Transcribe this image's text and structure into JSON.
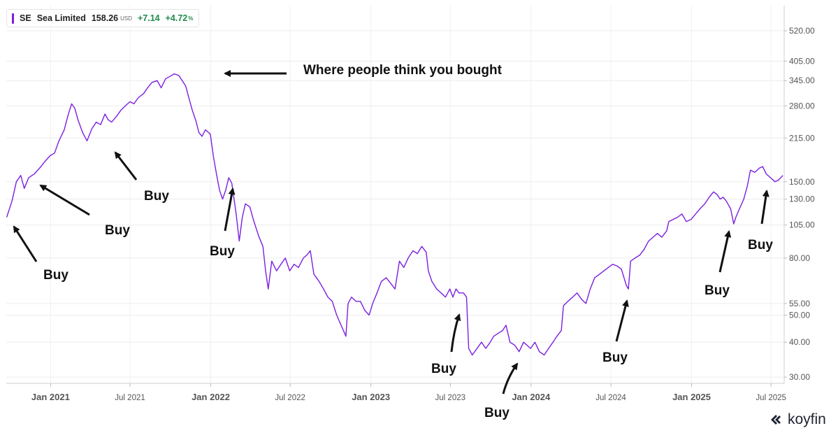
{
  "legend": {
    "symbol": "SE",
    "name": "Sea Limited",
    "price": "158.26",
    "currency": "USD",
    "change": "+7.14",
    "change_pct": "+4.72",
    "pct_sign": "%",
    "line_color": "#7b1fe0"
  },
  "brand": {
    "name": "koyfin"
  },
  "chart_data": {
    "type": "line",
    "title": "",
    "xlabel": "",
    "ylabel": "",
    "y_scale": "log",
    "ylim": [
      28.5,
      640
    ],
    "x_range": [
      "2020-09-22",
      "2025-07-31"
    ],
    "grid": true,
    "y_ticks": [
      "520.00",
      "405.00",
      "345.00",
      "280.00",
      "215.00",
      "150.00",
      "130.00",
      "105.00",
      "80.00",
      "55.00",
      "50.00",
      "40.00",
      "30.00"
    ],
    "x_ticks": [
      {
        "label": "Jan 2021",
        "date": "2021-01-01",
        "major": true
      },
      {
        "label": "Jul 2021",
        "date": "2021-07-01",
        "major": false
      },
      {
        "label": "Jan 2022",
        "date": "2022-01-01",
        "major": true
      },
      {
        "label": "Jul 2022",
        "date": "2022-07-01",
        "major": false
      },
      {
        "label": "Jan 2023",
        "date": "2023-01-01",
        "major": true
      },
      {
        "label": "Jul 2023",
        "date": "2023-07-01",
        "major": false
      },
      {
        "label": "Jan 2024",
        "date": "2024-01-01",
        "major": true
      },
      {
        "label": "Jul 2024",
        "date": "2024-07-01",
        "major": false
      },
      {
        "label": "Jan 2025",
        "date": "2025-01-01",
        "major": true
      },
      {
        "label": "Jul 2025",
        "date": "2025-07-01",
        "major": false
      }
    ],
    "series": [
      {
        "name": "SE",
        "color": "#7b1fe0",
        "points": [
          [
            "2020-09-23",
            112
          ],
          [
            "2020-10-05",
            128
          ],
          [
            "2020-10-15",
            150
          ],
          [
            "2020-10-25",
            158
          ],
          [
            "2020-11-02",
            142
          ],
          [
            "2020-11-12",
            155
          ],
          [
            "2020-11-25",
            160
          ],
          [
            "2020-12-10",
            170
          ],
          [
            "2020-12-20",
            178
          ],
          [
            "2020-12-31",
            186
          ],
          [
            "2021-01-10",
            190
          ],
          [
            "2021-01-20",
            210
          ],
          [
            "2021-02-01",
            230
          ],
          [
            "2021-02-10",
            260
          ],
          [
            "2021-02-18",
            285
          ],
          [
            "2021-02-25",
            275
          ],
          [
            "2021-03-05",
            248
          ],
          [
            "2021-03-15",
            225
          ],
          [
            "2021-03-25",
            210
          ],
          [
            "2021-04-05",
            232
          ],
          [
            "2021-04-15",
            245
          ],
          [
            "2021-04-25",
            240
          ],
          [
            "2021-05-05",
            262
          ],
          [
            "2021-05-12",
            250
          ],
          [
            "2021-05-20",
            245
          ],
          [
            "2021-06-01",
            258
          ],
          [
            "2021-06-10",
            270
          ],
          [
            "2021-06-20",
            280
          ],
          [
            "2021-07-01",
            290
          ],
          [
            "2021-07-10",
            285
          ],
          [
            "2021-07-20",
            300
          ],
          [
            "2021-08-01",
            310
          ],
          [
            "2021-08-10",
            325
          ],
          [
            "2021-08-20",
            340
          ],
          [
            "2021-09-01",
            345
          ],
          [
            "2021-09-10",
            325
          ],
          [
            "2021-09-20",
            350
          ],
          [
            "2021-10-01",
            358
          ],
          [
            "2021-10-10",
            365
          ],
          [
            "2021-10-20",
            360
          ],
          [
            "2021-10-28",
            345
          ],
          [
            "2021-11-05",
            330
          ],
          [
            "2021-11-12",
            300
          ],
          [
            "2021-11-20",
            270
          ],
          [
            "2021-11-28",
            248
          ],
          [
            "2021-12-05",
            225
          ],
          [
            "2021-12-12",
            218
          ],
          [
            "2021-12-20",
            230
          ],
          [
            "2021-12-31",
            222
          ],
          [
            "2022-01-07",
            185
          ],
          [
            "2022-01-14",
            160
          ],
          [
            "2022-01-21",
            140
          ],
          [
            "2022-01-28",
            130
          ],
          [
            "2022-02-04",
            140
          ],
          [
            "2022-02-11",
            155
          ],
          [
            "2022-02-18",
            148
          ],
          [
            "2022-02-28",
            115
          ],
          [
            "2022-03-07",
            92
          ],
          [
            "2022-03-14",
            112
          ],
          [
            "2022-03-21",
            125
          ],
          [
            "2022-03-31",
            122
          ],
          [
            "2022-04-08",
            110
          ],
          [
            "2022-04-20",
            96
          ],
          [
            "2022-04-30",
            88
          ],
          [
            "2022-05-06",
            72
          ],
          [
            "2022-05-12",
            62
          ],
          [
            "2022-05-20",
            78
          ],
          [
            "2022-05-31",
            72
          ],
          [
            "2022-06-10",
            76
          ],
          [
            "2022-06-20",
            80
          ],
          [
            "2022-06-30",
            72
          ],
          [
            "2022-07-10",
            76
          ],
          [
            "2022-07-20",
            74
          ],
          [
            "2022-07-31",
            80
          ],
          [
            "2022-08-08",
            82
          ],
          [
            "2022-08-16",
            85
          ],
          [
            "2022-08-24",
            70
          ],
          [
            "2022-09-05",
            66
          ],
          [
            "2022-09-15",
            62
          ],
          [
            "2022-09-25",
            58
          ],
          [
            "2022-10-05",
            56
          ],
          [
            "2022-10-15",
            50
          ],
          [
            "2022-10-25",
            46
          ],
          [
            "2022-11-05",
            42
          ],
          [
            "2022-11-10",
            55
          ],
          [
            "2022-11-18",
            58
          ],
          [
            "2022-11-28",
            56
          ],
          [
            "2022-12-08",
            56
          ],
          [
            "2022-12-18",
            52
          ],
          [
            "2022-12-28",
            50
          ],
          [
            "2023-01-05",
            55
          ],
          [
            "2023-01-15",
            60
          ],
          [
            "2023-01-25",
            66
          ],
          [
            "2023-02-05",
            68
          ],
          [
            "2023-02-15",
            65
          ],
          [
            "2023-02-25",
            62
          ],
          [
            "2023-03-07",
            78
          ],
          [
            "2023-03-17",
            74
          ],
          [
            "2023-03-27",
            80
          ],
          [
            "2023-04-07",
            85
          ],
          [
            "2023-04-17",
            83
          ],
          [
            "2023-04-27",
            88
          ],
          [
            "2023-05-07",
            84
          ],
          [
            "2023-05-12",
            72
          ],
          [
            "2023-05-20",
            66
          ],
          [
            "2023-05-31",
            62
          ],
          [
            "2023-06-10",
            60
          ],
          [
            "2023-06-20",
            58
          ],
          [
            "2023-06-30",
            62
          ],
          [
            "2023-07-07",
            58
          ],
          [
            "2023-07-14",
            62
          ],
          [
            "2023-07-21",
            60
          ],
          [
            "2023-07-31",
            60
          ],
          [
            "2023-08-07",
            58
          ],
          [
            "2023-08-12",
            38
          ],
          [
            "2023-08-20",
            36
          ],
          [
            "2023-08-31",
            38
          ],
          [
            "2023-09-10",
            40
          ],
          [
            "2023-09-20",
            38
          ],
          [
            "2023-09-30",
            40
          ],
          [
            "2023-10-08",
            42
          ],
          [
            "2023-10-18",
            43
          ],
          [
            "2023-10-28",
            44
          ],
          [
            "2023-11-05",
            46
          ],
          [
            "2023-11-14",
            40
          ],
          [
            "2023-11-25",
            39
          ],
          [
            "2023-12-05",
            37
          ],
          [
            "2023-12-15",
            40
          ],
          [
            "2023-12-31",
            38
          ],
          [
            "2024-01-10",
            40
          ],
          [
            "2024-01-20",
            37
          ],
          [
            "2024-01-31",
            36
          ],
          [
            "2024-02-10",
            38
          ],
          [
            "2024-02-20",
            40
          ],
          [
            "2024-02-29",
            42
          ],
          [
            "2024-03-10",
            44
          ],
          [
            "2024-03-15",
            54
          ],
          [
            "2024-03-25",
            56
          ],
          [
            "2024-04-05",
            58
          ],
          [
            "2024-04-15",
            60
          ],
          [
            "2024-04-25",
            57
          ],
          [
            "2024-05-05",
            55
          ],
          [
            "2024-05-15",
            62
          ],
          [
            "2024-05-25",
            68
          ],
          [
            "2024-06-05",
            70
          ],
          [
            "2024-06-15",
            72
          ],
          [
            "2024-06-25",
            74
          ],
          [
            "2024-07-05",
            76
          ],
          [
            "2024-07-15",
            75
          ],
          [
            "2024-07-25",
            73
          ],
          [
            "2024-08-05",
            64
          ],
          [
            "2024-08-10",
            62
          ],
          [
            "2024-08-15",
            78
          ],
          [
            "2024-08-25",
            80
          ],
          [
            "2024-09-05",
            82
          ],
          [
            "2024-09-15",
            86
          ],
          [
            "2024-09-25",
            92
          ],
          [
            "2024-10-05",
            95
          ],
          [
            "2024-10-15",
            98
          ],
          [
            "2024-10-25",
            95
          ],
          [
            "2024-11-05",
            100
          ],
          [
            "2024-11-10",
            108
          ],
          [
            "2024-11-20",
            110
          ],
          [
            "2024-11-30",
            112
          ],
          [
            "2024-12-10",
            115
          ],
          [
            "2024-12-20",
            108
          ],
          [
            "2024-12-31",
            110
          ],
          [
            "2025-01-10",
            115
          ],
          [
            "2025-01-20",
            120
          ],
          [
            "2025-01-31",
            125
          ],
          [
            "2025-02-10",
            132
          ],
          [
            "2025-02-20",
            138
          ],
          [
            "2025-02-28",
            135
          ],
          [
            "2025-03-07",
            130
          ],
          [
            "2025-03-14",
            132
          ],
          [
            "2025-03-21",
            128
          ],
          [
            "2025-03-31",
            120
          ],
          [
            "2025-04-07",
            106
          ],
          [
            "2025-04-12",
            112
          ],
          [
            "2025-04-20",
            120
          ],
          [
            "2025-04-30",
            130
          ],
          [
            "2025-05-08",
            145
          ],
          [
            "2025-05-15",
            165
          ],
          [
            "2025-05-25",
            162
          ],
          [
            "2025-06-05",
            168
          ],
          [
            "2025-06-12",
            170
          ],
          [
            "2025-06-20",
            160
          ],
          [
            "2025-06-30",
            155
          ],
          [
            "2025-07-10",
            150
          ],
          [
            "2025-07-18",
            152
          ],
          [
            "2025-07-28",
            158
          ]
        ]
      }
    ],
    "annotations": [
      {
        "text": "Where people think you bought",
        "kind": "label"
      },
      {
        "text": "Buy",
        "kind": "label"
      },
      {
        "text": "Buy",
        "kind": "label"
      },
      {
        "text": "Buy",
        "kind": "label"
      },
      {
        "text": "Buy",
        "kind": "label"
      },
      {
        "text": "Buy",
        "kind": "label"
      },
      {
        "text": "Buy",
        "kind": "label"
      },
      {
        "text": "Buy",
        "kind": "label"
      },
      {
        "text": "Buy",
        "kind": "label"
      },
      {
        "text": "Buy",
        "kind": "label"
      }
    ]
  }
}
